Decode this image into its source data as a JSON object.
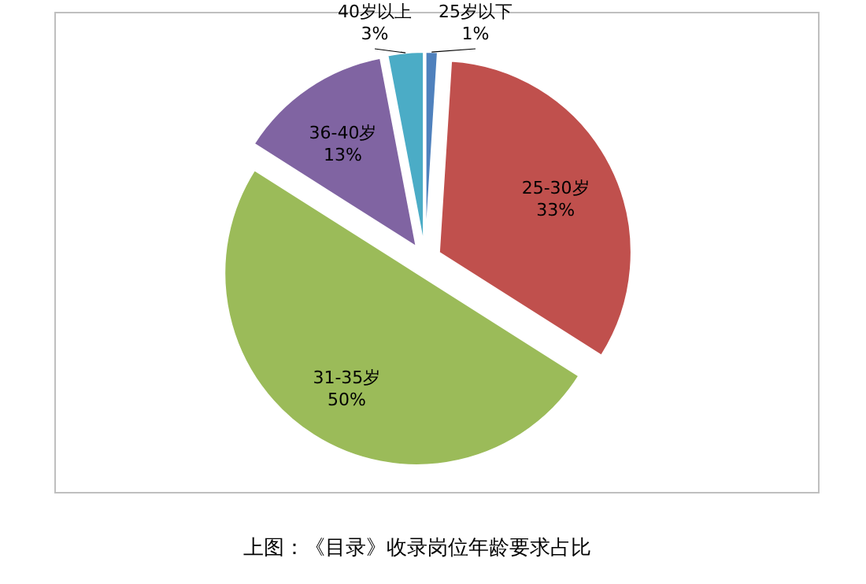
{
  "chart_data": {
    "type": "pie",
    "categories": [
      "25岁以下",
      "25-30岁",
      "31-35岁",
      "36-40岁",
      "40岁以上"
    ],
    "values": [
      1,
      33,
      50,
      13,
      3
    ],
    "colors": [
      "#4f81bd",
      "#c0504d",
      "#9bbb59",
      "#8064a2",
      "#4bacc6"
    ],
    "value_labels": [
      "1%",
      "33%",
      "50%",
      "13%",
      "3%"
    ],
    "annotations": [
      "上图：《目录》收录岗位年龄要求占比"
    ]
  }
}
